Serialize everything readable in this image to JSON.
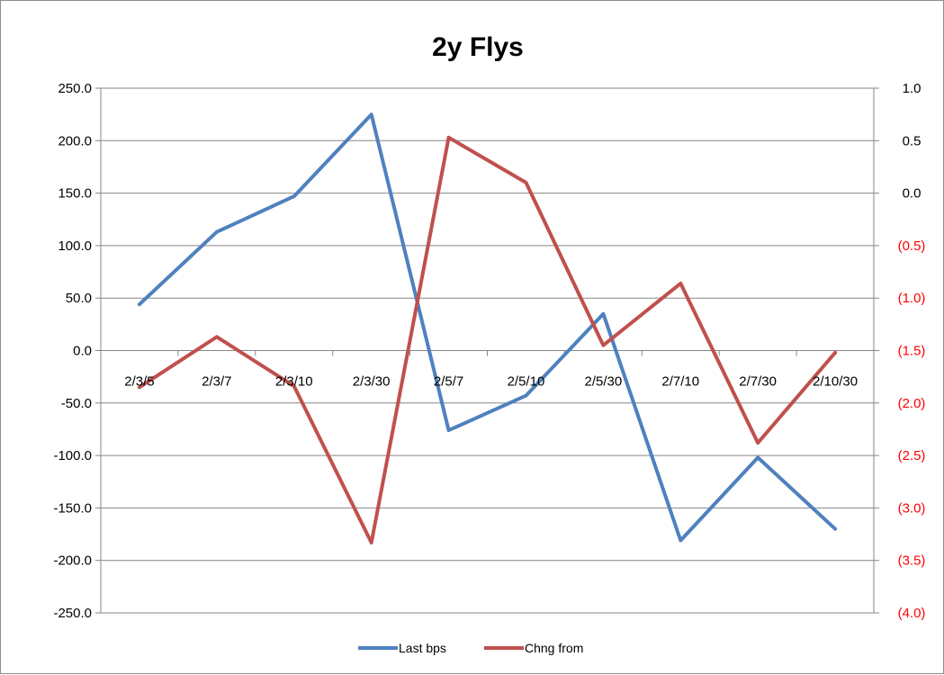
{
  "chart_data": {
    "type": "line",
    "title": "2y Flys",
    "categories": [
      "2/3/5",
      "2/3/7",
      "2/3/10",
      "2/3/30",
      "2/5/7",
      "2/5/10",
      "2/5/30",
      "2/7/10",
      "2/7/30",
      "2/10/30"
    ],
    "series": [
      {
        "name": "Last bps",
        "axis": "left",
        "color": "#4f81bd",
        "values": [
          44,
          113,
          147,
          225,
          -76,
          -43,
          35,
          -181,
          -102,
          -170
        ]
      },
      {
        "name": "Chng from",
        "axis": "right",
        "color": "#c0504d",
        "values": [
          -1.85,
          -1.37,
          -1.84,
          -3.33,
          0.53,
          0.1,
          -1.45,
          -0.86,
          -2.38,
          -1.52
        ]
      }
    ],
    "y_left": {
      "range": [
        -250,
        250
      ],
      "ticks": [
        "250.0",
        "200.0",
        "150.0",
        "100.0",
        "50.0",
        "0.0",
        "-50.0",
        "-100.0",
        "-150.0",
        "-200.0",
        "-250.0"
      ]
    },
    "y_right": {
      "range": [
        -4,
        1
      ],
      "ticks": [
        "1.0",
        "0.5",
        "0.0",
        "(0.5)",
        "(1.0)",
        "(1.5)",
        "(2.0)",
        "(2.5)",
        "(3.0)",
        "(3.5)",
        "(4.0)"
      ],
      "negative_color": "#ff0000"
    },
    "grid": true,
    "legend_position": "bottom"
  }
}
